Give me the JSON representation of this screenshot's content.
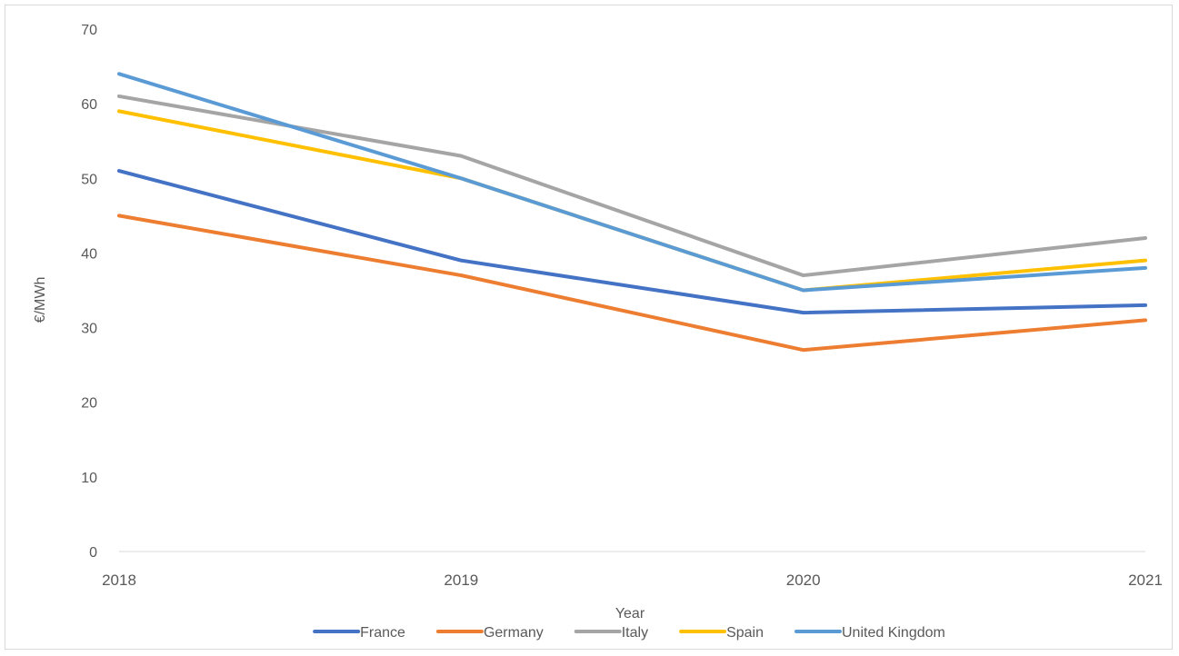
{
  "chart_data": {
    "type": "line",
    "x": [
      "2018",
      "2019",
      "2020",
      "2021"
    ],
    "xlabel": "Year",
    "ylabel": "€/MWh",
    "ylim": [
      0,
      70
    ],
    "yticks": [
      "0",
      "10",
      "20",
      "30",
      "40",
      "50",
      "60",
      "70"
    ],
    "grid": false,
    "legend_position": "bottom",
    "series": [
      {
        "name": "France",
        "color": "#4472C4",
        "values": [
          51,
          39,
          32,
          33
        ]
      },
      {
        "name": "Germany",
        "color": "#ED7D31",
        "values": [
          45,
          37,
          27,
          31
        ]
      },
      {
        "name": "Italy",
        "color": "#A5A5A5",
        "values": [
          61,
          53,
          37,
          42
        ]
      },
      {
        "name": "Spain",
        "color": "#FFC000",
        "values": [
          59,
          50,
          35,
          39
        ]
      },
      {
        "name": "United Kingdom",
        "color": "#5B9BD5",
        "values": [
          64,
          50,
          35,
          38
        ]
      }
    ]
  }
}
